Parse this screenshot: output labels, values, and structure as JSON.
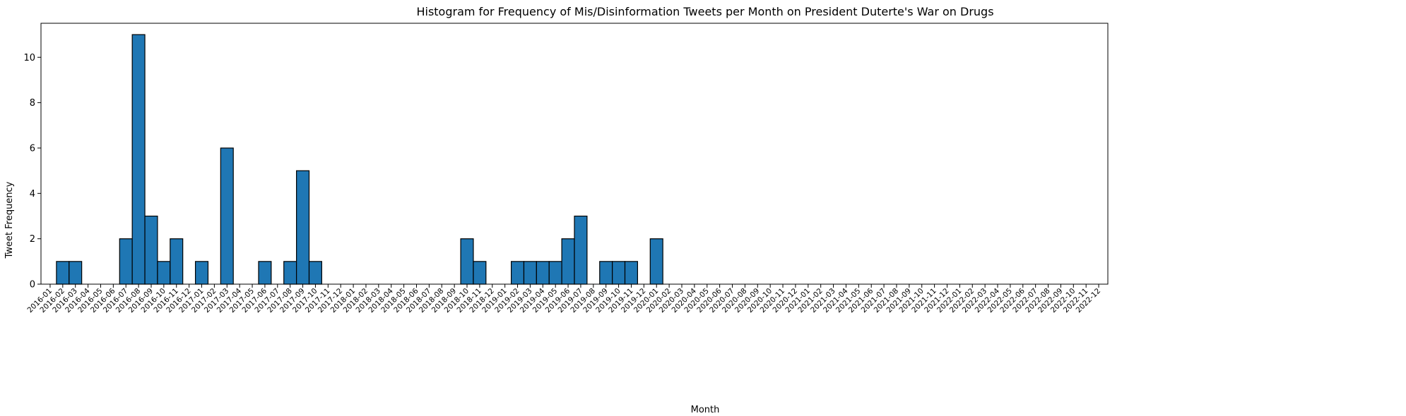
{
  "chart_data": {
    "type": "bar",
    "title": "Histogram for Frequency of Mis/Disinformation Tweets per Month on President Duterte's War on Drugs",
    "xlabel": "Month",
    "ylabel": "Tweet Frequency",
    "ylim": [
      0,
      11.5
    ],
    "yticks": [
      0,
      2,
      4,
      6,
      8,
      10
    ],
    "grid": false,
    "bar_color": "#1f77b4",
    "edge_color": "#000000",
    "categories": [
      "2016-01",
      "2016-02",
      "2016-03",
      "2016-04",
      "2016-05",
      "2016-06",
      "2016-07",
      "2016-08",
      "2016-09",
      "2016-10",
      "2016-11",
      "2016-12",
      "2017-01",
      "2017-02",
      "2017-03",
      "2017-04",
      "2017-05",
      "2017-06",
      "2017-07",
      "2017-08",
      "2017-09",
      "2017-10",
      "2017-11",
      "2017-12",
      "2018-01",
      "2018-02",
      "2018-03",
      "2018-04",
      "2018-05",
      "2018-06",
      "2018-07",
      "2018-08",
      "2018-09",
      "2018-10",
      "2018-11",
      "2018-12",
      "2019-01",
      "2019-02",
      "2019-03",
      "2019-04",
      "2019-05",
      "2019-06",
      "2019-07",
      "2019-08",
      "2019-09",
      "2019-10",
      "2019-11",
      "2019-12",
      "2020-01",
      "2020-02",
      "2020-03",
      "2020-04",
      "2020-05",
      "2020-06",
      "2020-07",
      "2020-08",
      "2020-09",
      "2020-10",
      "2020-11",
      "2020-12",
      "2021-01",
      "2021-02",
      "2021-03",
      "2021-04",
      "2021-05",
      "2021-06",
      "2021-07",
      "2021-08",
      "2021-09",
      "2021-10",
      "2021-11",
      "2021-12",
      "2022-01",
      "2022-02",
      "2022-03",
      "2022-04",
      "2022-05",
      "2022-06",
      "2022-07",
      "2022-08",
      "2022-09",
      "2022-10",
      "2022-11",
      "2022-12"
    ],
    "values": [
      0,
      1,
      1,
      0,
      0,
      0,
      2,
      11,
      3,
      1,
      2,
      0,
      1,
      0,
      6,
      0,
      0,
      1,
      0,
      1,
      5,
      1,
      0,
      0,
      0,
      0,
      0,
      0,
      0,
      0,
      0,
      0,
      0,
      2,
      1,
      0,
      0,
      1,
      1,
      1,
      1,
      2,
      3,
      0,
      1,
      1,
      1,
      0,
      2,
      0,
      0,
      0,
      0,
      0,
      0,
      0,
      0,
      0,
      0,
      0,
      0,
      0,
      0,
      0,
      0,
      0,
      0,
      0,
      0,
      0,
      0,
      0,
      0,
      0,
      0,
      0,
      0,
      0,
      0,
      0,
      0,
      0,
      0,
      0
    ]
  }
}
